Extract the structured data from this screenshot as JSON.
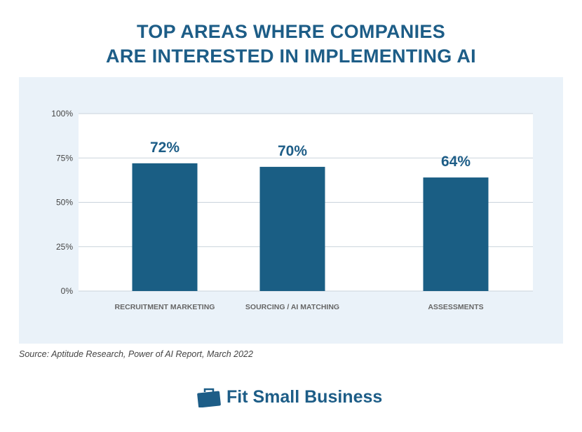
{
  "chart_data": {
    "type": "bar",
    "title": "TOP AREAS WHERE COMPANIES ARE INTERESTED IN IMPLEMENTING AI",
    "title_lines": [
      "TOP AREAS WHERE COMPANIES",
      "ARE INTERESTED IN IMPLEMENTING AI"
    ],
    "categories": [
      "RECRUITMENT MARKETING",
      "SOURCING / AI MATCHING",
      "ASSESSMENTS"
    ],
    "values": [
      72,
      70,
      64
    ],
    "data_labels": [
      "72%",
      "70%",
      "64%"
    ],
    "ylim": [
      0,
      100
    ],
    "yticks": [
      0,
      25,
      50,
      75,
      100
    ],
    "ytick_labels": [
      "0%",
      "25%",
      "50%",
      "75%",
      "100%"
    ],
    "grid": true,
    "bar_color": "#1a5e84",
    "title_color": "#1d5d87"
  },
  "source": "Source: Aptitude Research, Power of AI Report, March 2022",
  "logo": {
    "text": "Fit Small Business",
    "icon": "briefcase-icon"
  }
}
